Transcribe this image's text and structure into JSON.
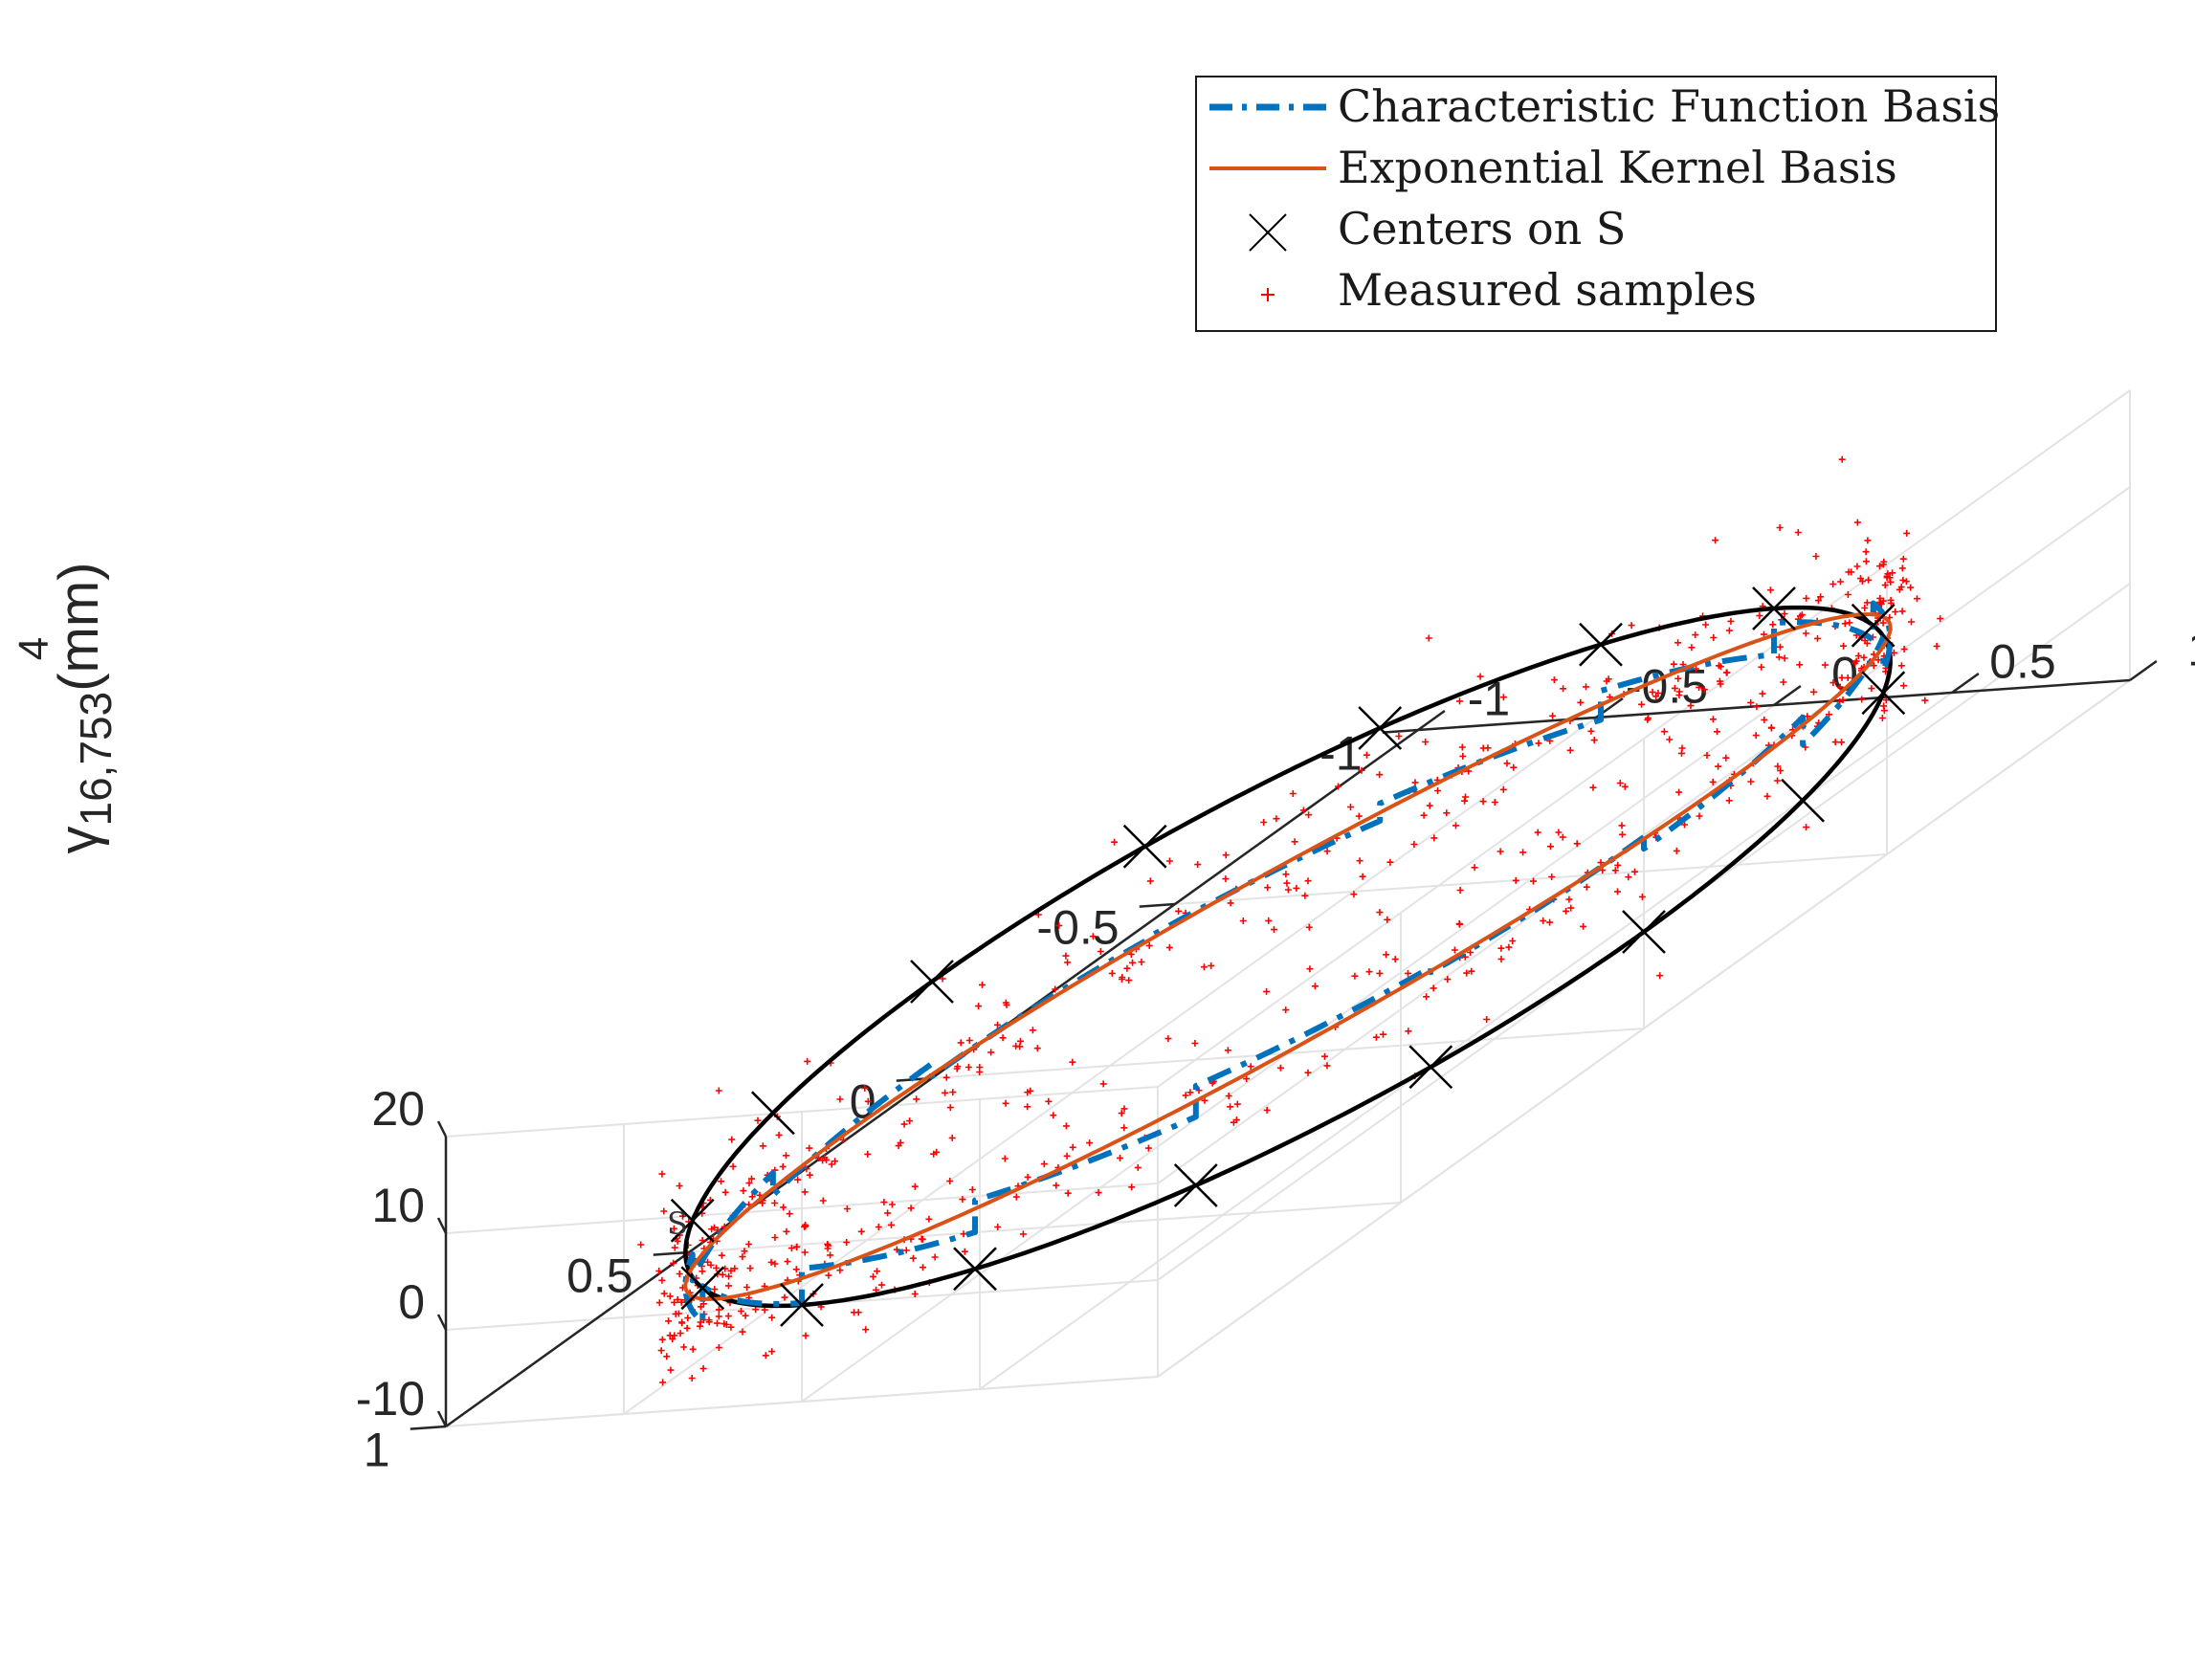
{
  "chart_data": {
    "type": "3d-line-scatter",
    "title": "",
    "zlabel": {
      "symbol": "γ",
      "superscript": "4",
      "subscript": "16,753",
      "unit": "(mm)"
    },
    "xlim": [
      -1,
      1
    ],
    "ylim": [
      -1,
      1
    ],
    "zlim": [
      -10,
      20
    ],
    "x_ticks": [
      "-1",
      "-0.5",
      "0",
      "0.5",
      "1"
    ],
    "y_ticks": [
      "-1",
      "-0.5",
      "0",
      "0.5",
      "1"
    ],
    "z_ticks": [
      "-10",
      "0",
      "10",
      "20"
    ],
    "grid": true,
    "legend_position": "top-right",
    "series": [
      {
        "name": "Characteristic Function Basis",
        "style": "dash-dot",
        "color": "#0072bd",
        "description": "piecewise-constant fit over 16 intervals on S"
      },
      {
        "name": "Exponential Kernel Basis",
        "style": "solid",
        "color": "#d95319",
        "description": "smooth fit, approx. 10*cos(theta - 0.28)"
      },
      {
        "name": "Centers on S",
        "style": "marker-x",
        "color": "#000000",
        "count": 16
      },
      {
        "name": "Measured samples",
        "style": "marker-dot",
        "color": "#ff0000",
        "count": 700
      }
    ],
    "annotation": "S",
    "curve_S": {
      "description": "unit circle at height z = 0"
    },
    "kernel_fit": {
      "amplitude": 10,
      "phase": 0.28
    },
    "step_levels": [
      9.8,
      10.3,
      7.1,
      3.8,
      0.2,
      -3.5,
      -6.2,
      -8.5,
      -9.8,
      -9.6,
      -7.8,
      -4.8,
      -1.5,
      2.3,
      5.8,
      8.6
    ],
    "noise_sd": 4
  }
}
